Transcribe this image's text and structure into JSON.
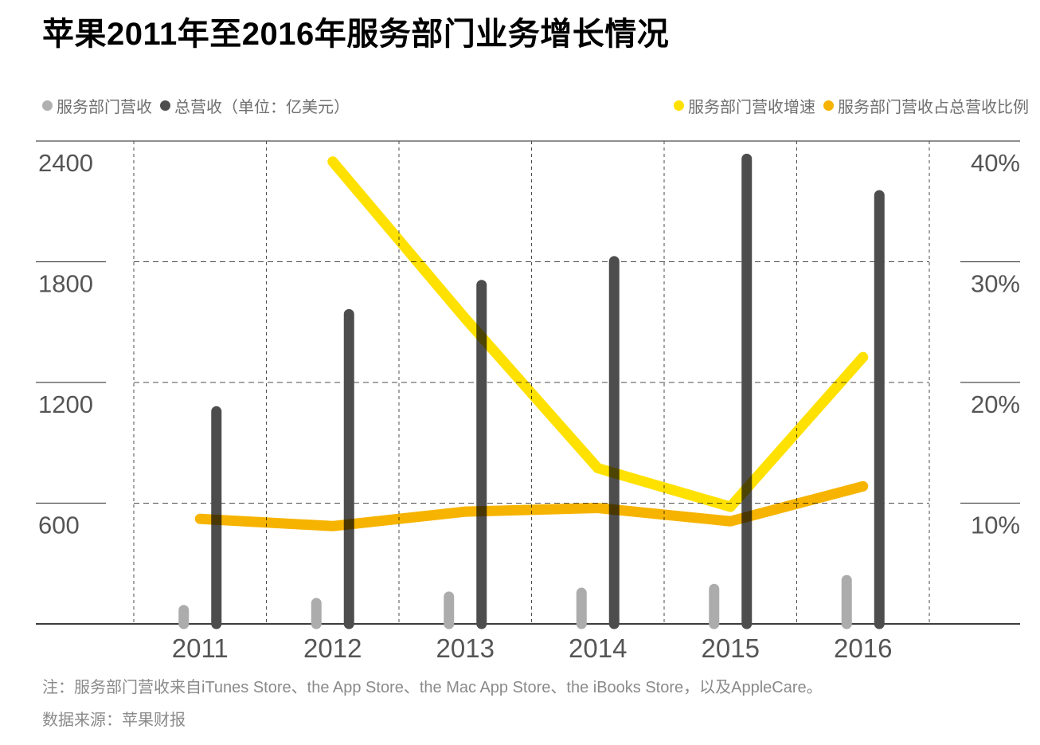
{
  "title": "苹果2011年至2016年服务部门业务增长情况",
  "legend": {
    "left": [
      {
        "label": "服务部门营收",
        "color": "#b0b0b0"
      },
      {
        "label": "总营收（单位：亿美元）",
        "color": "#4d4d4d"
      }
    ],
    "right": [
      {
        "label": "服务部门营收增速",
        "color": "#ffe100"
      },
      {
        "label": "服务部门营收占总营收比例",
        "color": "#f6b400"
      }
    ]
  },
  "chart_data": {
    "type": "combo-bar-line",
    "title": "苹果2011年至2016年服务部门业务增长情况",
    "categories": [
      "2011",
      "2012",
      "2013",
      "2014",
      "2015",
      "2016"
    ],
    "series": [
      {
        "key": "services-revenue",
        "name": "服务部门营收",
        "type": "bar",
        "axis": "left",
        "color": "#acacac",
        "values": [
          94,
          129,
          161,
          180,
          199,
          243
        ]
      },
      {
        "key": "total-revenue",
        "name": "总营收",
        "type": "bar",
        "axis": "left",
        "color": "#4d4d4d",
        "values": [
          1082,
          1565,
          1710,
          1828,
          2337,
          2156
        ]
      },
      {
        "key": "services-growth",
        "name": "服务部门营收增速",
        "type": "line",
        "axis": "right",
        "color": "#ffe100",
        "values": [
          null,
          38.3,
          25.3,
          12.9,
          9.7,
          22.1
        ]
      },
      {
        "key": "services-share",
        "name": "服务部门营收占总营收比例",
        "type": "line",
        "axis": "right",
        "color": "#f6b400",
        "values": [
          8.7,
          8.1,
          9.3,
          9.6,
          8.5,
          11.4
        ]
      }
    ],
    "left_axis": {
      "unit": "亿美元",
      "ticks": [
        600,
        1200,
        1800,
        2400
      ],
      "range": [
        0,
        2400
      ]
    },
    "right_axis": {
      "ticks": [
        "10%",
        "20%",
        "30%",
        "40%"
      ],
      "tick_values": [
        10,
        20,
        30,
        40
      ],
      "range": [
        0,
        40
      ]
    },
    "grid": {
      "horizontal": "dashed",
      "vertical": "dashed"
    },
    "legend_position": "top"
  },
  "notes": {
    "line1": "注：服务部门营收来自iTunes Store、the App Store、the Mac App Store、the iBooks Store，以及AppleCare。",
    "line2": "数据来源：苹果财报"
  },
  "colors": {
    "title": "#000000",
    "legend_text": "#6f6f6f",
    "axis_text": "#555555",
    "grid": "#4d4d4d",
    "baseline": "#3d3d3d",
    "note_text": "#8a8a8a"
  }
}
